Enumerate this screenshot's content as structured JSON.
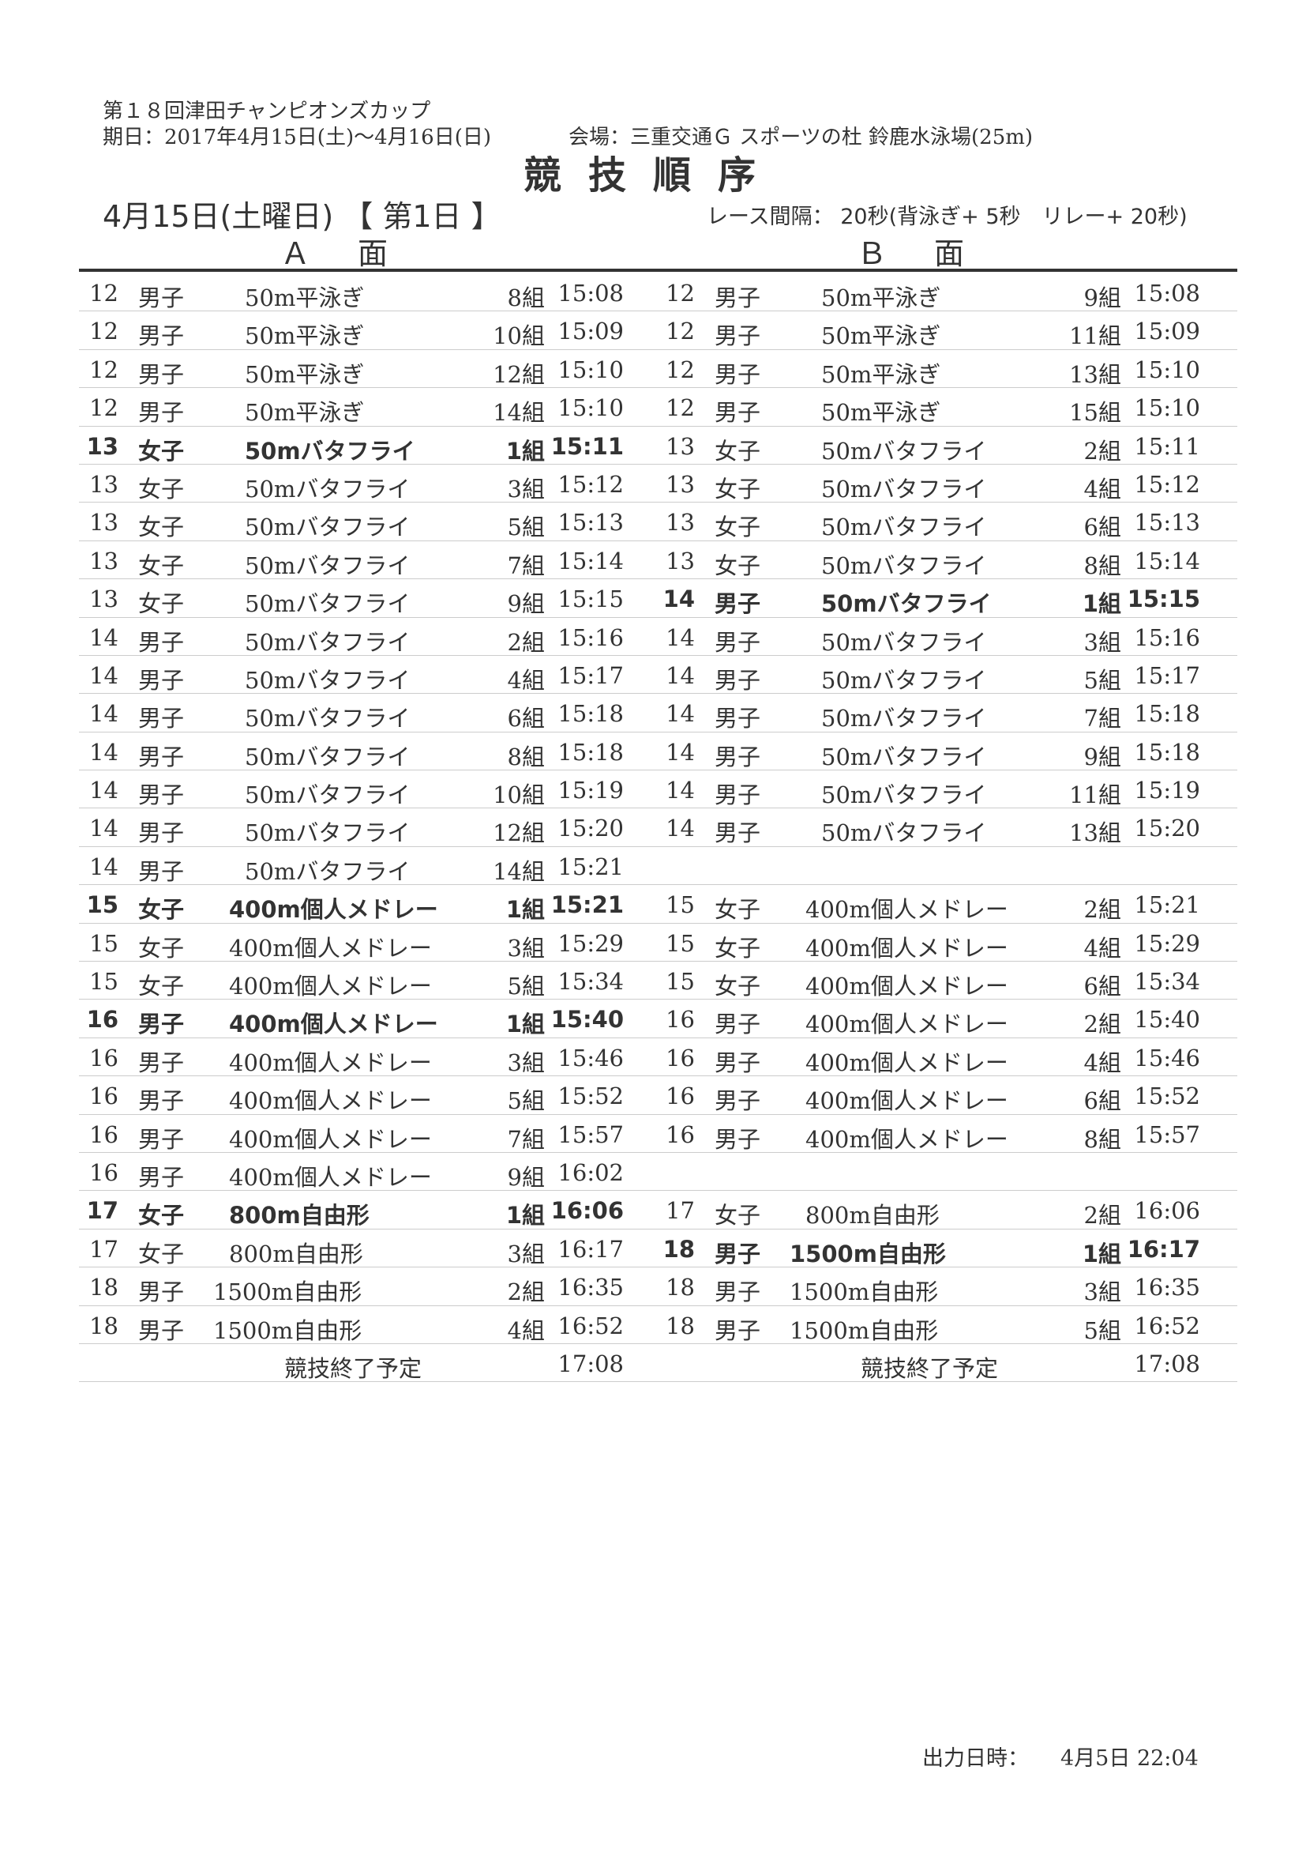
{
  "header": {
    "competition": "第１８回津田チャンピオンズカップ",
    "period": "期日：2017年4月15日(土)～4月16日(日)",
    "venue": "会場：三重交通Ｇ スポーツの杜 鈴鹿水泳場(25m)",
    "title": "競技順序",
    "date": "4月15日(土曜日) 【 第1日 】",
    "interval": "レース間隔： 20秒(背泳ぎ+ 5秒　リレー+ 20秒)",
    "side_a": "Ａ面",
    "side_b": "Ｂ面"
  },
  "rows": [
    {
      "a": [
        "12",
        "男子",
        "50m平泳ぎ",
        "8組",
        "15:08",
        0
      ],
      "b": [
        "12",
        "男子",
        "50m平泳ぎ",
        "9組",
        "15:08",
        0
      ]
    },
    {
      "a": [
        "12",
        "男子",
        "50m平泳ぎ",
        "10組",
        "15:09",
        0
      ],
      "b": [
        "12",
        "男子",
        "50m平泳ぎ",
        "11組",
        "15:09",
        0
      ]
    },
    {
      "a": [
        "12",
        "男子",
        "50m平泳ぎ",
        "12組",
        "15:10",
        0
      ],
      "b": [
        "12",
        "男子",
        "50m平泳ぎ",
        "13組",
        "15:10",
        0
      ]
    },
    {
      "a": [
        "12",
        "男子",
        "50m平泳ぎ",
        "14組",
        "15:10",
        0
      ],
      "b": [
        "12",
        "男子",
        "50m平泳ぎ",
        "15組",
        "15:10",
        0
      ]
    },
    {
      "a": [
        "13",
        "女子",
        "50mバタフライ",
        "1組",
        "15:11",
        1
      ],
      "b": [
        "13",
        "女子",
        "50mバタフライ",
        "2組",
        "15:11",
        0
      ]
    },
    {
      "a": [
        "13",
        "女子",
        "50mバタフライ",
        "3組",
        "15:12",
        0
      ],
      "b": [
        "13",
        "女子",
        "50mバタフライ",
        "4組",
        "15:12",
        0
      ]
    },
    {
      "a": [
        "13",
        "女子",
        "50mバタフライ",
        "5組",
        "15:13",
        0
      ],
      "b": [
        "13",
        "女子",
        "50mバタフライ",
        "6組",
        "15:13",
        0
      ]
    },
    {
      "a": [
        "13",
        "女子",
        "50mバタフライ",
        "7組",
        "15:14",
        0
      ],
      "b": [
        "13",
        "女子",
        "50mバタフライ",
        "8組",
        "15:14",
        0
      ]
    },
    {
      "a": [
        "13",
        "女子",
        "50mバタフライ",
        "9組",
        "15:15",
        0
      ],
      "b": [
        "14",
        "男子",
        "50mバタフライ",
        "1組",
        "15:15",
        1
      ]
    },
    {
      "a": [
        "14",
        "男子",
        "50mバタフライ",
        "2組",
        "15:16",
        0
      ],
      "b": [
        "14",
        "男子",
        "50mバタフライ",
        "3組",
        "15:16",
        0
      ]
    },
    {
      "a": [
        "14",
        "男子",
        "50mバタフライ",
        "4組",
        "15:17",
        0
      ],
      "b": [
        "14",
        "男子",
        "50mバタフライ",
        "5組",
        "15:17",
        0
      ]
    },
    {
      "a": [
        "14",
        "男子",
        "50mバタフライ",
        "6組",
        "15:18",
        0
      ],
      "b": [
        "14",
        "男子",
        "50mバタフライ",
        "7組",
        "15:18",
        0
      ]
    },
    {
      "a": [
        "14",
        "男子",
        "50mバタフライ",
        "8組",
        "15:18",
        0
      ],
      "b": [
        "14",
        "男子",
        "50mバタフライ",
        "9組",
        "15:18",
        0
      ]
    },
    {
      "a": [
        "14",
        "男子",
        "50mバタフライ",
        "10組",
        "15:19",
        0
      ],
      "b": [
        "14",
        "男子",
        "50mバタフライ",
        "11組",
        "15:19",
        0
      ]
    },
    {
      "a": [
        "14",
        "男子",
        "50mバタフライ",
        "12組",
        "15:20",
        0
      ],
      "b": [
        "14",
        "男子",
        "50mバタフライ",
        "13組",
        "15:20",
        0
      ]
    },
    {
      "a": [
        "14",
        "男子",
        "50mバタフライ",
        "14組",
        "15:21",
        0
      ],
      "b": null
    },
    {
      "a": [
        "15",
        "女子",
        "400m個人メドレー",
        "1組",
        "15:21",
        1
      ],
      "b": [
        "15",
        "女子",
        "400m個人メドレー",
        "2組",
        "15:21",
        0
      ]
    },
    {
      "a": [
        "15",
        "女子",
        "400m個人メドレー",
        "3組",
        "15:29",
        0
      ],
      "b": [
        "15",
        "女子",
        "400m個人メドレー",
        "4組",
        "15:29",
        0
      ]
    },
    {
      "a": [
        "15",
        "女子",
        "400m個人メドレー",
        "5組",
        "15:34",
        0
      ],
      "b": [
        "15",
        "女子",
        "400m個人メドレー",
        "6組",
        "15:34",
        0
      ]
    },
    {
      "a": [
        "16",
        "男子",
        "400m個人メドレー",
        "1組",
        "15:40",
        1
      ],
      "b": [
        "16",
        "男子",
        "400m個人メドレー",
        "2組",
        "15:40",
        0
      ]
    },
    {
      "a": [
        "16",
        "男子",
        "400m個人メドレー",
        "3組",
        "15:46",
        0
      ],
      "b": [
        "16",
        "男子",
        "400m個人メドレー",
        "4組",
        "15:46",
        0
      ]
    },
    {
      "a": [
        "16",
        "男子",
        "400m個人メドレー",
        "5組",
        "15:52",
        0
      ],
      "b": [
        "16",
        "男子",
        "400m個人メドレー",
        "6組",
        "15:52",
        0
      ]
    },
    {
      "a": [
        "16",
        "男子",
        "400m個人メドレー",
        "7組",
        "15:57",
        0
      ],
      "b": [
        "16",
        "男子",
        "400m個人メドレー",
        "8組",
        "15:57",
        0
      ]
    },
    {
      "a": [
        "16",
        "男子",
        "400m個人メドレー",
        "9組",
        "16:02",
        0
      ],
      "b": null
    },
    {
      "a": [
        "17",
        "女子",
        "800m自由形",
        "1組",
        "16:06",
        1
      ],
      "b": [
        "17",
        "女子",
        "800m自由形",
        "2組",
        "16:06",
        0
      ]
    },
    {
      "a": [
        "17",
        "女子",
        "800m自由形",
        "3組",
        "16:17",
        0
      ],
      "b": [
        "18",
        "男子",
        "1500m自由形",
        "1組",
        "16:17",
        1
      ]
    },
    {
      "a": [
        "18",
        "男子",
        "1500m自由形",
        "2組",
        "16:35",
        0
      ],
      "b": [
        "18",
        "男子",
        "1500m自由形",
        "3組",
        "16:35",
        0
      ]
    },
    {
      "a": [
        "18",
        "男子",
        "1500m自由形",
        "4組",
        "16:52",
        0
      ],
      "b": [
        "18",
        "男子",
        "1500m自由形",
        "5組",
        "16:52",
        0
      ]
    }
  ],
  "end": {
    "label": "競技終了予定",
    "time_a": "17:08",
    "time_b": "17:08"
  },
  "footer": {
    "label": "出力日時：",
    "value": "4月5日 22:04"
  }
}
